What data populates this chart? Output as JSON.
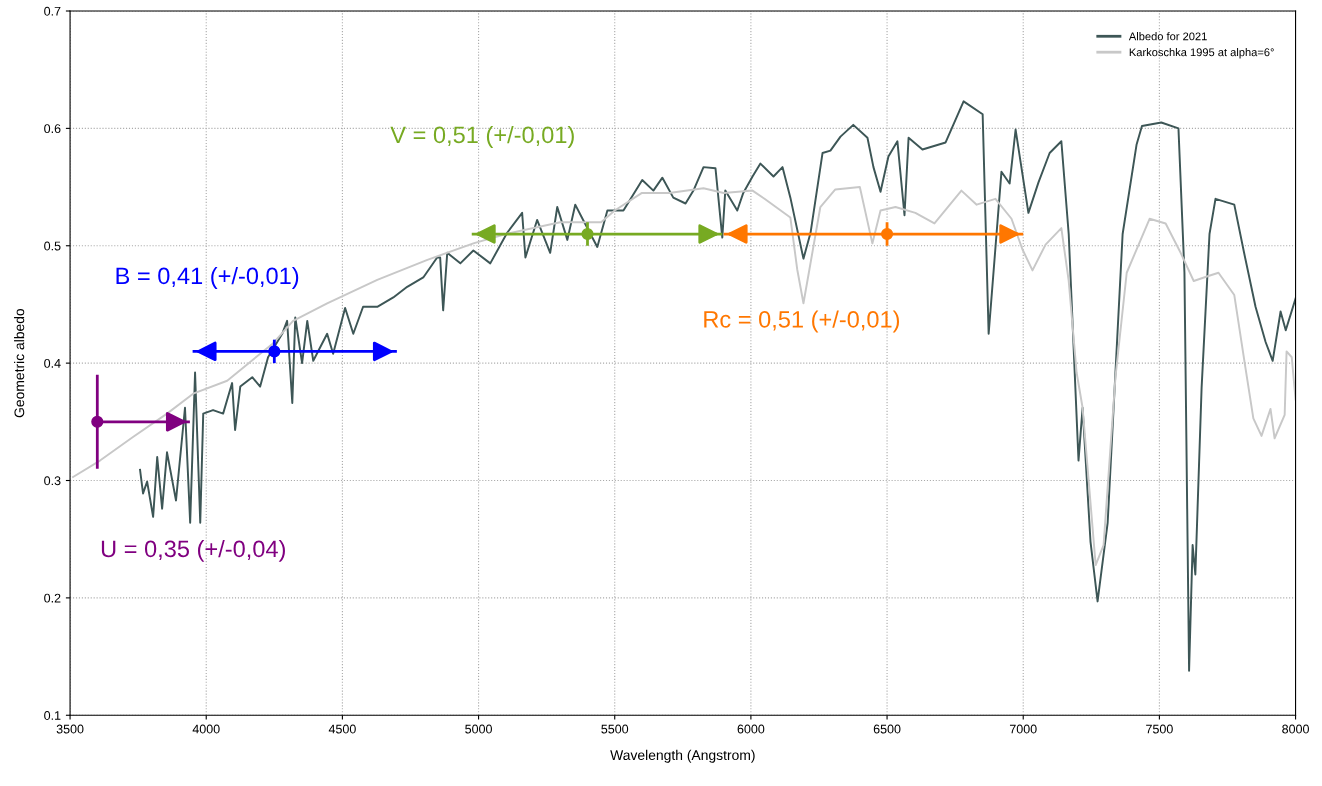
{
  "chart_data": {
    "type": "line",
    "xlabel": "Wavelength (Angstrom)",
    "ylabel": "Geometric albedo",
    "xlim": [
      3500,
      8000
    ],
    "xticks": [
      3500,
      4000,
      4500,
      5000,
      5500,
      6000,
      6500,
      7000,
      7500,
      8000
    ],
    "ylim": [
      0.1,
      0.7
    ],
    "yticks": [
      0.1,
      0.2,
      0.3,
      0.4,
      0.5,
      0.6,
      0.7
    ],
    "grid": true,
    "legend": "top right",
    "series": [
      {
        "name": "Albedo for 2021",
        "color": "#3d5656",
        "line_style": "solid",
        "x": [
          3757,
          3768,
          3783,
          3805,
          3820,
          3838,
          3856,
          3889,
          3922,
          3941,
          3959,
          3978,
          3989,
          4025,
          4062,
          4095,
          4106,
          4125,
          4169,
          4198,
          4227,
          4279,
          4297,
          4316,
          4327,
          4352,
          4371,
          4393,
          4444,
          4466,
          4510,
          4540,
          4576,
          4628,
          4687,
          4738,
          4797,
          4848,
          4859,
          4870,
          4885,
          4933,
          4981,
          5043,
          5105,
          5160,
          5172,
          5215,
          5263,
          5289,
          5326,
          5355,
          5384,
          5436,
          5473,
          5532,
          5601,
          5642,
          5675,
          5715,
          5760,
          5789,
          5826,
          5870,
          5895,
          5906,
          5950,
          5972,
          6006,
          6035,
          6083,
          6116,
          6145,
          6193,
          6219,
          6263,
          6292,
          6329,
          6376,
          6428,
          6450,
          6476,
          6505,
          6538,
          6564,
          6579,
          6630,
          6715,
          6781,
          6851,
          6873,
          6920,
          6950,
          6972,
          7019,
          7056,
          7097,
          7140,
          7167,
          7203,
          7218,
          7247,
          7273,
          7310,
          7365,
          7416,
          7436,
          7507,
          7570,
          7592,
          7609,
          7622,
          7632,
          7655,
          7684,
          7706,
          7775,
          7811,
          7853,
          7890,
          7916,
          7945,
          7964,
          8000
        ],
        "values": [
          0.309,
          0.289,
          0.299,
          0.269,
          0.32,
          0.276,
          0.324,
          0.283,
          0.362,
          0.264,
          0.392,
          0.264,
          0.357,
          0.36,
          0.357,
          0.383,
          0.343,
          0.38,
          0.388,
          0.38,
          0.405,
          0.425,
          0.436,
          0.366,
          0.439,
          0.4,
          0.436,
          0.402,
          0.425,
          0.408,
          0.447,
          0.425,
          0.448,
          0.448,
          0.456,
          0.465,
          0.473,
          0.49,
          0.49,
          0.445,
          0.494,
          0.485,
          0.496,
          0.485,
          0.511,
          0.528,
          0.49,
          0.522,
          0.494,
          0.533,
          0.505,
          0.535,
          0.522,
          0.499,
          0.53,
          0.53,
          0.556,
          0.547,
          0.558,
          0.541,
          0.536,
          0.547,
          0.567,
          0.566,
          0.507,
          0.547,
          0.53,
          0.545,
          0.559,
          0.57,
          0.559,
          0.567,
          0.541,
          0.489,
          0.511,
          0.579,
          0.581,
          0.593,
          0.603,
          0.592,
          0.567,
          0.546,
          0.576,
          0.589,
          0.526,
          0.592,
          0.582,
          0.588,
          0.623,
          0.612,
          0.425,
          0.563,
          0.553,
          0.599,
          0.528,
          0.554,
          0.579,
          0.589,
          0.51,
          0.317,
          0.362,
          0.248,
          0.197,
          0.264,
          0.51,
          0.586,
          0.602,
          0.605,
          0.6,
          0.477,
          0.138,
          0.245,
          0.22,
          0.379,
          0.51,
          0.54,
          0.535,
          0.494,
          0.448,
          0.418,
          0.402,
          0.444,
          0.428,
          0.455
        ]
      },
      {
        "name": "Karkoschka 1995 at alpha=6°",
        "color": "#c8c8c8",
        "line_style": "solid",
        "x": [
          3511,
          3610,
          3731,
          3856,
          3952,
          4077,
          4246,
          4319,
          4444,
          4628,
          4812,
          4981,
          5100,
          5300,
          5450,
          5500,
          5600,
          5700,
          5826,
          5900,
          6006,
          6050,
          6145,
          6170,
          6193,
          6215,
          6255,
          6310,
          6400,
          6446,
          6476,
          6531,
          6604,
          6674,
          6773,
          6829,
          6898,
          6957,
          6997,
          7034,
          7082,
          7140,
          7167,
          7196,
          7218,
          7266,
          7295,
          7339,
          7380,
          7464,
          7523,
          7578,
          7626,
          7677,
          7717,
          7775,
          7816,
          7845,
          7875,
          7908,
          7923,
          7960,
          7967,
          7986,
          8000
        ],
        "values": [
          0.303,
          0.317,
          0.337,
          0.357,
          0.374,
          0.385,
          0.417,
          0.436,
          0.451,
          0.471,
          0.488,
          0.502,
          0.51,
          0.52,
          0.52,
          0.53,
          0.545,
          0.545,
          0.549,
          0.545,
          0.547,
          0.54,
          0.524,
          0.48,
          0.451,
          0.48,
          0.533,
          0.548,
          0.55,
          0.502,
          0.53,
          0.533,
          0.528,
          0.519,
          0.547,
          0.535,
          0.54,
          0.523,
          0.497,
          0.479,
          0.501,
          0.515,
          0.47,
          0.392,
          0.362,
          0.228,
          0.245,
          0.389,
          0.477,
          0.523,
          0.519,
          0.494,
          0.47,
          0.474,
          0.477,
          0.458,
          0.396,
          0.353,
          0.338,
          0.361,
          0.336,
          0.356,
          0.41,
          0.405,
          0.369
        ]
      },
      {
        "name": "U = 0,35 (+/-0,04)",
        "type": "scatter",
        "marker": "circle",
        "color": "#800080",
        "x": [
          3600
        ],
        "values": [
          0.35
        ],
        "errors": [
          0.04
        ],
        "xerrors": [
          [
            3600,
            3940
          ]
        ]
      },
      {
        "name": "B = 0,41 (+/-0,01)",
        "type": "scatter",
        "marker": "circle",
        "color": "#0000ff",
        "x": [
          4250
        ],
        "values": [
          0.41
        ],
        "errors": [
          0.01
        ],
        "xerrors": [
          [
            3950,
            4700
          ]
        ]
      },
      {
        "name": "V = 0,51 (+/-0,01)",
        "type": "scatter",
        "marker": "circle",
        "color": "#77aa22",
        "x": [
          5400
        ],
        "values": [
          0.51
        ],
        "errors": [
          0.01
        ],
        "xerrors": [
          [
            4975,
            5895
          ]
        ]
      },
      {
        "name": "Rc = 0,51 (+/-0,01)",
        "type": "scatter",
        "marker": "circle",
        "color": "#ff7700",
        "x": [
          6500
        ],
        "values": [
          0.51
        ],
        "errors": [
          0.01
        ],
        "xerrors": [
          [
            5900,
            7000
          ]
        ]
      }
    ]
  }
}
